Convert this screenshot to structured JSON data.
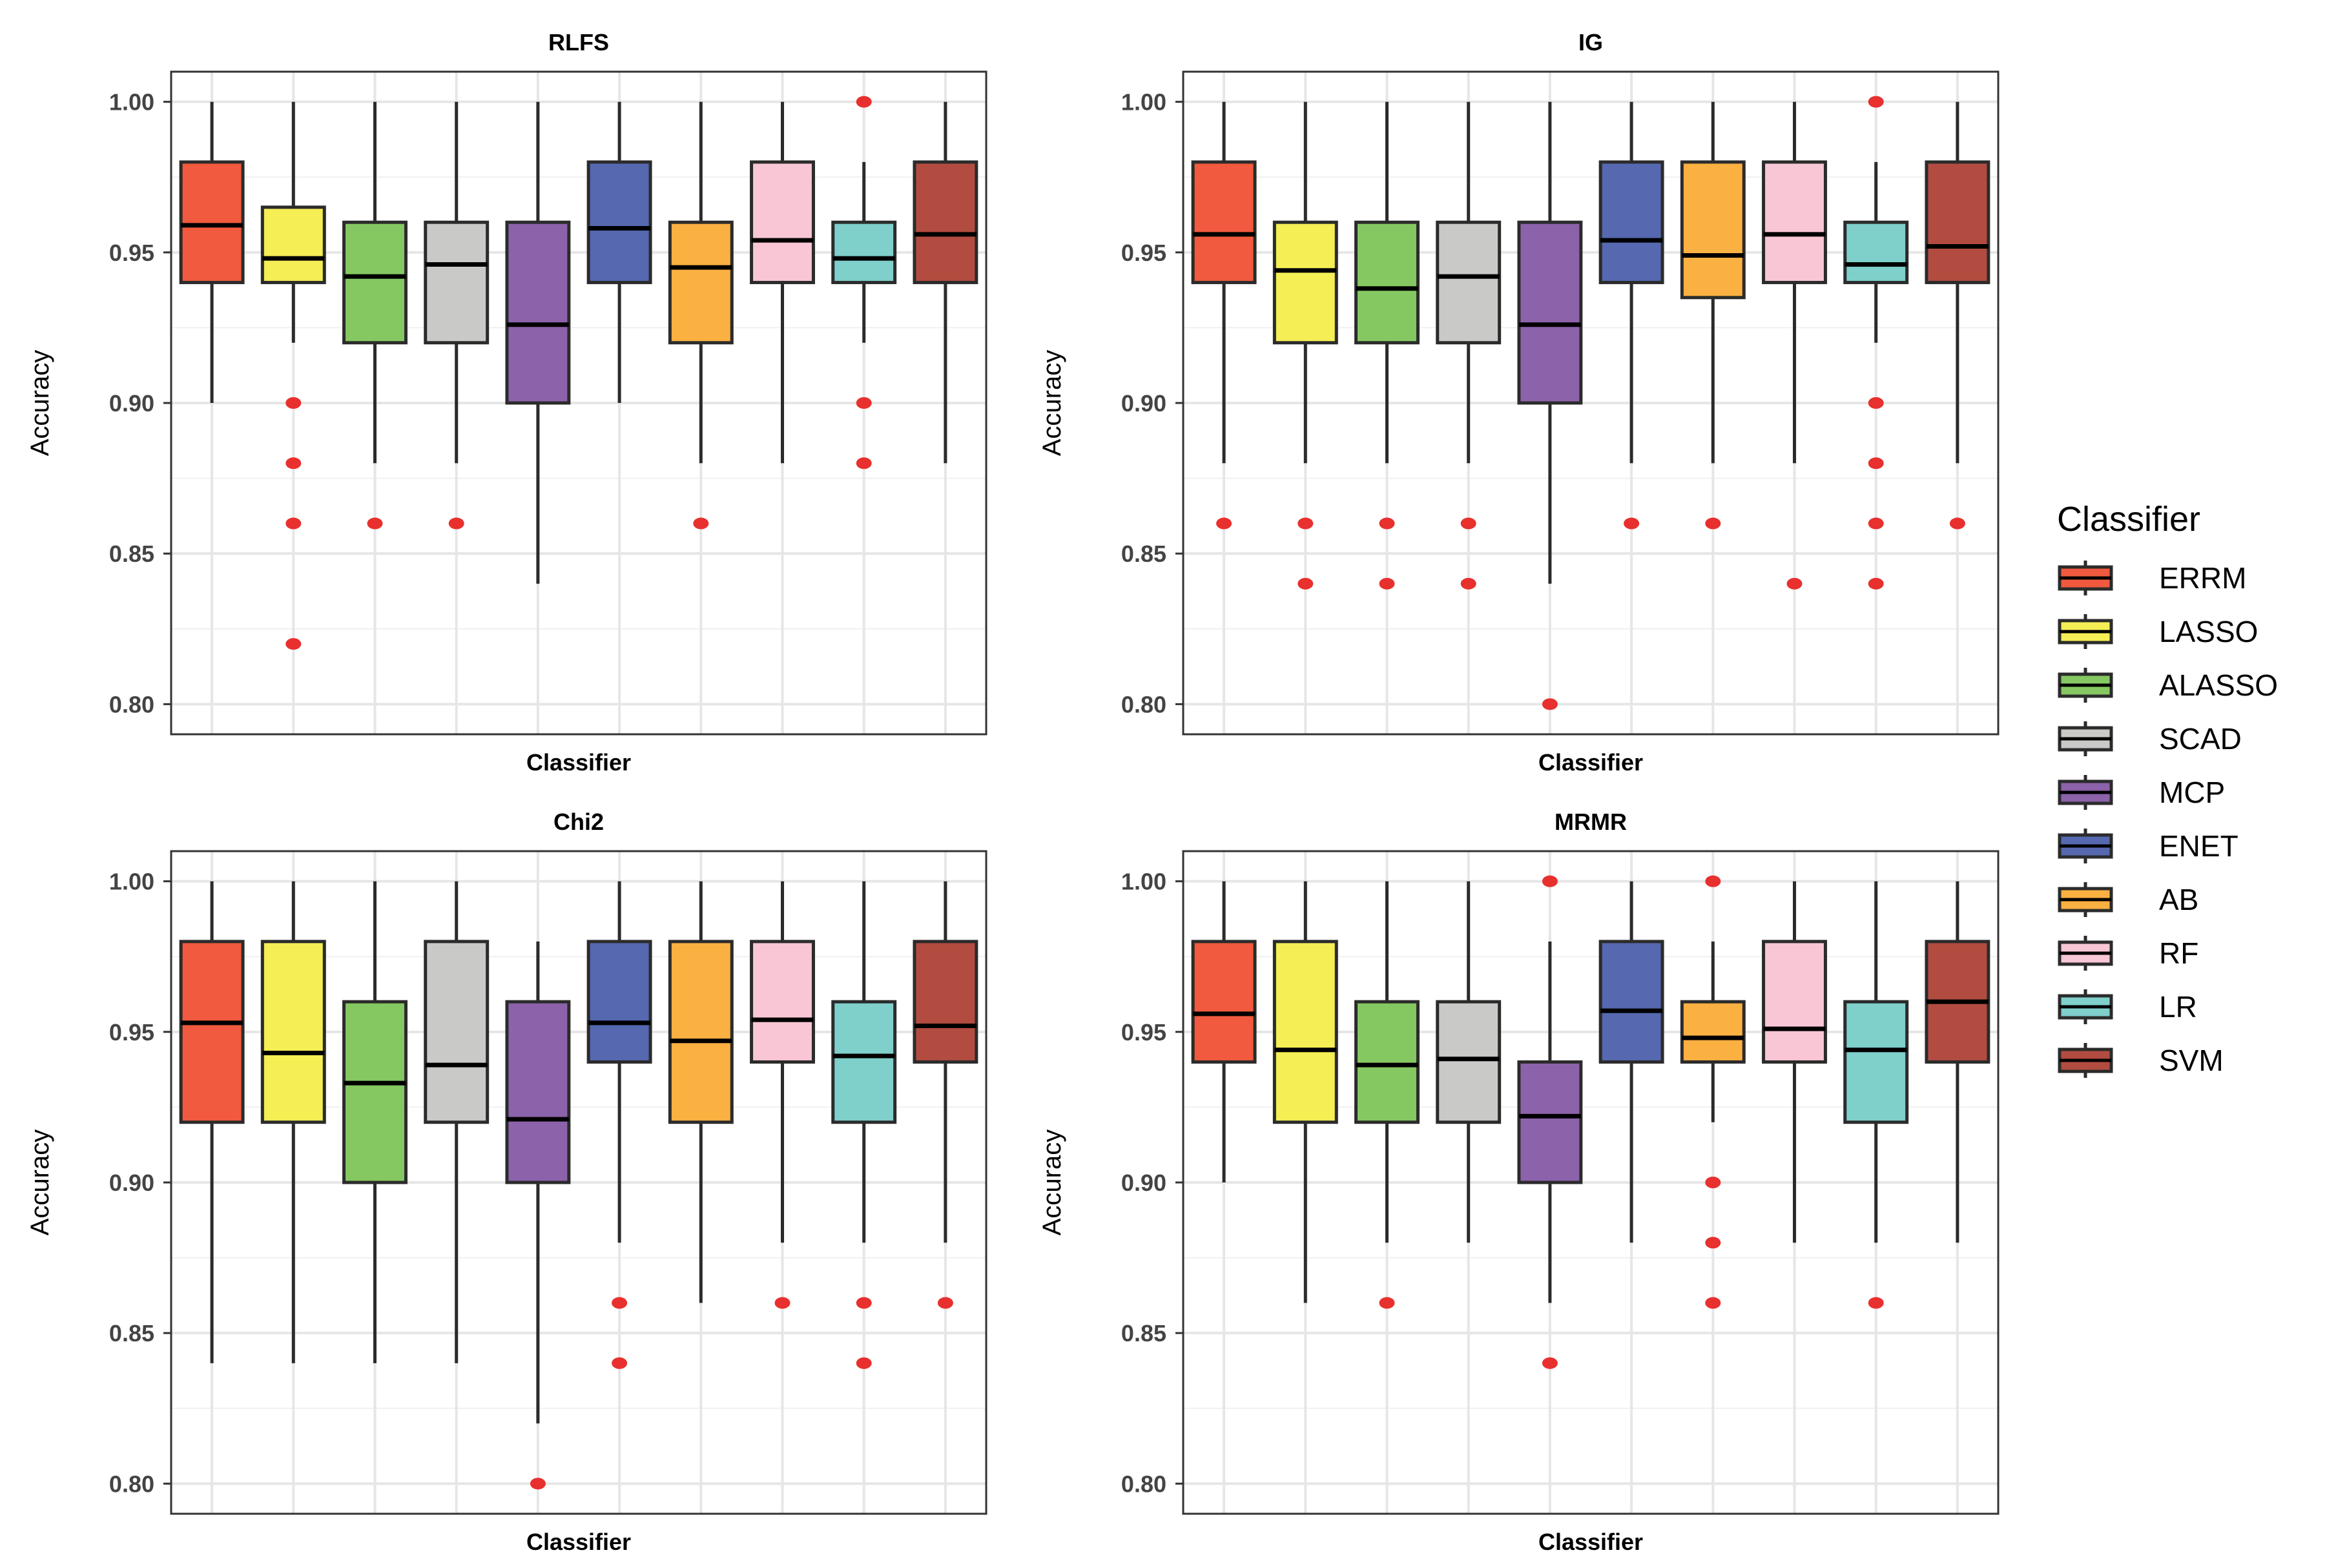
{
  "legend": {
    "title": "Classifier",
    "entries": [
      "ERRM",
      "LASSO",
      "ALASSO",
      "SCAD",
      "MCP",
      "ENET",
      "AB",
      "RF",
      "LR",
      "SVM"
    ]
  },
  "colors": {
    "ERRM": "#F15A3E",
    "LASSO": "#F5EE55",
    "ALASSO": "#85C862",
    "SCAD": "#C9C9C7",
    "MCP": "#8C62AA",
    "ENET": "#5568B0",
    "AB": "#FBB042",
    "RF": "#F8C6D4",
    "LR": "#7FCFCB",
    "SVM": "#B24C40",
    "outlier": "#E8302E"
  },
  "chart_data": [
    {
      "type": "boxplot",
      "title": "RLFS",
      "xlabel": "Classifier",
      "ylabel": "Accuracy",
      "ylim": [
        0.79,
        1.01
      ],
      "yticks": [
        "0.80",
        "0.85",
        "0.90",
        "0.95",
        "1.00"
      ],
      "series": [
        {
          "name": "ERRM",
          "min": 0.9,
          "q1": 0.94,
          "median": 0.959,
          "q3": 0.98,
          "max": 1.0,
          "outliers": []
        },
        {
          "name": "LASSO",
          "min": 0.92,
          "q1": 0.94,
          "median": 0.948,
          "q3": 0.965,
          "max": 1.0,
          "outliers": [
            0.9,
            0.88,
            0.86,
            0.82
          ]
        },
        {
          "name": "ALASSO",
          "min": 0.88,
          "q1": 0.92,
          "median": 0.942,
          "q3": 0.96,
          "max": 1.0,
          "outliers": [
            0.86
          ]
        },
        {
          "name": "SCAD",
          "min": 0.88,
          "q1": 0.92,
          "median": 0.946,
          "q3": 0.96,
          "max": 1.0,
          "outliers": [
            0.86
          ]
        },
        {
          "name": "MCP",
          "min": 0.84,
          "q1": 0.9,
          "median": 0.926,
          "q3": 0.96,
          "max": 1.0,
          "outliers": []
        },
        {
          "name": "ENET",
          "min": 0.9,
          "q1": 0.94,
          "median": 0.958,
          "q3": 0.98,
          "max": 1.0,
          "outliers": []
        },
        {
          "name": "AB",
          "min": 0.88,
          "q1": 0.92,
          "median": 0.945,
          "q3": 0.96,
          "max": 1.0,
          "outliers": [
            0.86
          ]
        },
        {
          "name": "RF",
          "min": 0.88,
          "q1": 0.94,
          "median": 0.954,
          "q3": 0.98,
          "max": 1.0,
          "outliers": []
        },
        {
          "name": "LR",
          "min": 0.92,
          "q1": 0.94,
          "median": 0.948,
          "q3": 0.96,
          "max": 0.98,
          "outliers": [
            1.0,
            0.9,
            0.88
          ]
        },
        {
          "name": "SVM",
          "min": 0.88,
          "q1": 0.94,
          "median": 0.956,
          "q3": 0.98,
          "max": 1.0,
          "outliers": []
        }
      ]
    },
    {
      "type": "boxplot",
      "title": "IG",
      "xlabel": "Classifier",
      "ylabel": "Accuracy",
      "ylim": [
        0.79,
        1.01
      ],
      "yticks": [
        "0.80",
        "0.85",
        "0.90",
        "0.95",
        "1.00"
      ],
      "series": [
        {
          "name": "ERRM",
          "min": 0.88,
          "q1": 0.94,
          "median": 0.956,
          "q3": 0.98,
          "max": 1.0,
          "outliers": [
            0.86
          ]
        },
        {
          "name": "LASSO",
          "min": 0.88,
          "q1": 0.92,
          "median": 0.944,
          "q3": 0.96,
          "max": 1.0,
          "outliers": [
            0.86,
            0.84
          ]
        },
        {
          "name": "ALASSO",
          "min": 0.88,
          "q1": 0.92,
          "median": 0.938,
          "q3": 0.96,
          "max": 1.0,
          "outliers": [
            0.86,
            0.84
          ]
        },
        {
          "name": "SCAD",
          "min": 0.88,
          "q1": 0.92,
          "median": 0.942,
          "q3": 0.96,
          "max": 1.0,
          "outliers": [
            0.86,
            0.84
          ]
        },
        {
          "name": "MCP",
          "min": 0.84,
          "q1": 0.9,
          "median": 0.926,
          "q3": 0.96,
          "max": 1.0,
          "outliers": [
            0.8
          ]
        },
        {
          "name": "ENET",
          "min": 0.88,
          "q1": 0.94,
          "median": 0.954,
          "q3": 0.98,
          "max": 1.0,
          "outliers": [
            0.86
          ]
        },
        {
          "name": "AB",
          "min": 0.88,
          "q1": 0.935,
          "median": 0.949,
          "q3": 0.98,
          "max": 1.0,
          "outliers": [
            0.86
          ]
        },
        {
          "name": "RF",
          "min": 0.88,
          "q1": 0.94,
          "median": 0.956,
          "q3": 0.98,
          "max": 1.0,
          "outliers": [
            0.84
          ]
        },
        {
          "name": "LR",
          "min": 0.92,
          "q1": 0.94,
          "median": 0.946,
          "q3": 0.96,
          "max": 0.98,
          "outliers": [
            1.0,
            0.9,
            0.88,
            0.86,
            0.84
          ]
        },
        {
          "name": "SVM",
          "min": 0.88,
          "q1": 0.94,
          "median": 0.952,
          "q3": 0.98,
          "max": 1.0,
          "outliers": [
            0.86
          ]
        }
      ]
    },
    {
      "type": "boxplot",
      "title": "Chi2",
      "xlabel": "Classifier",
      "ylabel": "Accuracy",
      "ylim": [
        0.79,
        1.01
      ],
      "yticks": [
        "0.80",
        "0.85",
        "0.90",
        "0.95",
        "1.00"
      ],
      "series": [
        {
          "name": "ERRM",
          "min": 0.84,
          "q1": 0.92,
          "median": 0.953,
          "q3": 0.98,
          "max": 1.0,
          "outliers": []
        },
        {
          "name": "LASSO",
          "min": 0.84,
          "q1": 0.92,
          "median": 0.943,
          "q3": 0.98,
          "max": 1.0,
          "outliers": []
        },
        {
          "name": "ALASSO",
          "min": 0.84,
          "q1": 0.9,
          "median": 0.933,
          "q3": 0.96,
          "max": 1.0,
          "outliers": []
        },
        {
          "name": "SCAD",
          "min": 0.84,
          "q1": 0.92,
          "median": 0.939,
          "q3": 0.98,
          "max": 1.0,
          "outliers": []
        },
        {
          "name": "MCP",
          "min": 0.82,
          "q1": 0.9,
          "median": 0.921,
          "q3": 0.96,
          "max": 0.98,
          "outliers": [
            0.8
          ]
        },
        {
          "name": "ENET",
          "min": 0.88,
          "q1": 0.94,
          "median": 0.953,
          "q3": 0.98,
          "max": 1.0,
          "outliers": [
            0.86,
            0.84
          ]
        },
        {
          "name": "AB",
          "min": 0.86,
          "q1": 0.92,
          "median": 0.947,
          "q3": 0.98,
          "max": 1.0,
          "outliers": []
        },
        {
          "name": "RF",
          "min": 0.88,
          "q1": 0.94,
          "median": 0.954,
          "q3": 0.98,
          "max": 1.0,
          "outliers": [
            0.86
          ]
        },
        {
          "name": "LR",
          "min": 0.88,
          "q1": 0.92,
          "median": 0.942,
          "q3": 0.96,
          "max": 1.0,
          "outliers": [
            0.86,
            0.84
          ]
        },
        {
          "name": "SVM",
          "min": 0.88,
          "q1": 0.94,
          "median": 0.952,
          "q3": 0.98,
          "max": 1.0,
          "outliers": [
            0.86
          ]
        }
      ]
    },
    {
      "type": "boxplot",
      "title": "MRMR",
      "xlabel": "Classifier",
      "ylabel": "Accuracy",
      "ylim": [
        0.79,
        1.01
      ],
      "yticks": [
        "0.80",
        "0.85",
        "0.90",
        "0.95",
        "1.00"
      ],
      "series": [
        {
          "name": "ERRM",
          "min": 0.9,
          "q1": 0.94,
          "median": 0.956,
          "q3": 0.98,
          "max": 1.0,
          "outliers": []
        },
        {
          "name": "LASSO",
          "min": 0.86,
          "q1": 0.92,
          "median": 0.944,
          "q3": 0.98,
          "max": 1.0,
          "outliers": []
        },
        {
          "name": "ALASSO",
          "min": 0.88,
          "q1": 0.92,
          "median": 0.939,
          "q3": 0.96,
          "max": 1.0,
          "outliers": [
            0.86
          ]
        },
        {
          "name": "SCAD",
          "min": 0.88,
          "q1": 0.92,
          "median": 0.941,
          "q3": 0.96,
          "max": 1.0,
          "outliers": []
        },
        {
          "name": "MCP",
          "min": 0.86,
          "q1": 0.9,
          "median": 0.922,
          "q3": 0.94,
          "max": 0.98,
          "outliers": [
            1.0,
            0.84
          ]
        },
        {
          "name": "ENET",
          "min": 0.88,
          "q1": 0.94,
          "median": 0.957,
          "q3": 0.98,
          "max": 1.0,
          "outliers": []
        },
        {
          "name": "AB",
          "min": 0.92,
          "q1": 0.94,
          "median": 0.948,
          "q3": 0.96,
          "max": 0.98,
          "outliers": [
            1.0,
            0.9,
            0.88,
            0.86
          ]
        },
        {
          "name": "RF",
          "min": 0.88,
          "q1": 0.94,
          "median": 0.951,
          "q3": 0.98,
          "max": 1.0,
          "outliers": []
        },
        {
          "name": "LR",
          "min": 0.88,
          "q1": 0.92,
          "median": 0.944,
          "q3": 0.96,
          "max": 1.0,
          "outliers": [
            0.86
          ]
        },
        {
          "name": "SVM",
          "min": 0.88,
          "q1": 0.94,
          "median": 0.96,
          "q3": 0.98,
          "max": 1.0,
          "outliers": []
        }
      ]
    }
  ]
}
